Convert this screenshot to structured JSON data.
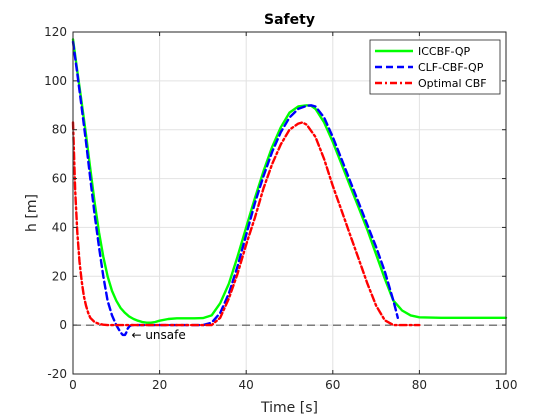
{
  "chart_data": {
    "type": "line",
    "title": "Safety",
    "xlabel": "Time [s]",
    "ylabel": "h [m]",
    "xlim": [
      0,
      100
    ],
    "ylim": [
      -20,
      120
    ],
    "xticks": [
      0,
      20,
      40,
      60,
      80,
      100
    ],
    "yticks": [
      -20,
      0,
      20,
      40,
      60,
      80,
      100,
      120
    ],
    "xtick_labels": [
      "0",
      "20",
      "40",
      "60",
      "80",
      "100"
    ],
    "ytick_labels": [
      "-20",
      "0",
      "20",
      "40",
      "60",
      "80",
      "100",
      "120"
    ],
    "grid": true,
    "legend_position": "top-right",
    "annotation": {
      "text": "← unsafe",
      "x": 13.5,
      "y": -4
    },
    "reference_line": {
      "y": 0,
      "style": "dashed",
      "color": "#000000"
    },
    "series": [
      {
        "name": "ICCBF-QP",
        "color": "#00ff00",
        "style": "solid",
        "x": [
          0,
          1,
          2,
          3,
          4,
          5,
          6,
          7,
          8,
          9,
          10,
          11,
          12,
          13,
          14,
          15,
          16,
          17,
          18,
          19,
          20,
          22,
          24,
          26,
          28,
          30,
          32,
          34,
          36,
          38,
          40,
          42,
          44,
          46,
          48,
          50,
          52,
          54,
          55,
          56,
          58,
          60,
          62,
          64,
          66,
          68,
          70,
          72,
          74,
          75,
          76,
          78,
          80,
          85,
          90,
          95,
          100
        ],
        "y": [
          117,
          104,
          91,
          78,
          64,
          50,
          38,
          28,
          20,
          14,
          10,
          7,
          5,
          3.5,
          2.5,
          1.8,
          1.3,
          1,
          1,
          1.3,
          1.8,
          2.5,
          2.8,
          2.8,
          2.8,
          2.9,
          4,
          9,
          17,
          28,
          40,
          52,
          63,
          73,
          81,
          87,
          89.5,
          90,
          89.8,
          88.5,
          83,
          75,
          66,
          57,
          48,
          39,
          29,
          19,
          10,
          8,
          6,
          4,
          3.2,
          3,
          3,
          3,
          3
        ]
      },
      {
        "name": "CLF-CBF-QP",
        "color": "#0000ff",
        "style": "dashed",
        "x": [
          0,
          1,
          2,
          3,
          4,
          5,
          6,
          7,
          8,
          9,
          10,
          11,
          11.5,
          12,
          12.3,
          12.6,
          13,
          13.5,
          14,
          16,
          18,
          20,
          22,
          24,
          26,
          28,
          30,
          32,
          34,
          36,
          38,
          40,
          42,
          44,
          46,
          48,
          50,
          52,
          54,
          55,
          56,
          58,
          60,
          62,
          64,
          66,
          68,
          70,
          72,
          74,
          75
        ],
        "y": [
          116,
          103,
          89,
          75,
          60,
          45,
          32,
          20,
          10,
          4,
          0,
          -3,
          -4,
          -4,
          -3,
          -1.5,
          -0.5,
          0,
          0,
          0,
          0,
          0,
          0,
          0,
          0,
          0,
          0,
          1,
          5,
          13,
          24,
          37,
          50,
          61,
          71,
          79,
          85,
          88.5,
          89.8,
          90,
          89.5,
          85,
          77,
          68,
          59,
          50,
          41,
          32,
          22,
          10,
          3
        ]
      },
      {
        "name": "Optimal CBF",
        "color": "#ff0000",
        "style": "dashdot",
        "x": [
          0,
          0.5,
          1,
          1.5,
          2,
          2.5,
          3,
          3.5,
          4,
          5,
          6,
          7,
          8,
          10,
          12,
          14,
          16,
          18,
          20,
          22,
          24,
          26,
          28,
          30,
          32,
          34,
          36,
          38,
          40,
          42,
          44,
          46,
          48,
          50,
          52,
          53,
          54,
          56,
          58,
          60,
          62,
          64,
          66,
          68,
          70,
          72,
          74,
          75,
          78,
          80
        ],
        "y": [
          83,
          55,
          38,
          26,
          18,
          12,
          8,
          5,
          3,
          1.2,
          0.5,
          0.2,
          0,
          0,
          0,
          0,
          0,
          0,
          0,
          0,
          0,
          0,
          0,
          0,
          0,
          3,
          11,
          21,
          33,
          44,
          56,
          66,
          74,
          80,
          82.5,
          83,
          82,
          77,
          68,
          57,
          47,
          37,
          27,
          17,
          8,
          2,
          0,
          0,
          0,
          0
        ]
      }
    ]
  }
}
